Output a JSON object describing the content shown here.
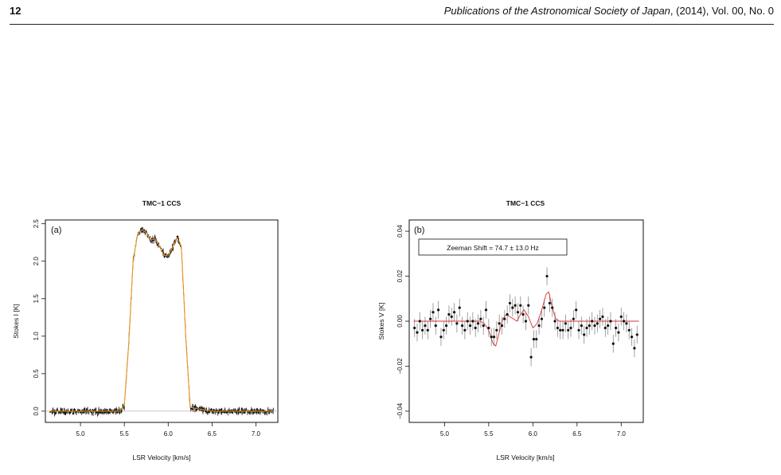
{
  "header": {
    "page_number": "12",
    "journal_italic": "Publications of the Astronomical Society of Japan",
    "journal_rest": ", (2014), Vol. 00, No. 0"
  },
  "colors": {
    "spectrum_black": "#111111",
    "fit_orange": "#e8931e",
    "model_red": "#d33333",
    "error_bar": "#8a8a8a",
    "zero_line": "#b5b5b5"
  },
  "chart_data": [
    {
      "type": "line",
      "panel_label": "(a)",
      "title": "TMC−1 CCS",
      "xlabel": "LSR Velocity [km/s]",
      "ylabel": "Stokes I [K]",
      "xlim": [
        4.6,
        7.25
      ],
      "ylim": [
        -0.15,
        2.55
      ],
      "x_ticks": [
        "5.0",
        "5.5",
        "6.0",
        "6.5",
        "7.0"
      ],
      "x_tick_values": [
        5.0,
        5.5,
        6.0,
        6.5,
        7.0
      ],
      "y_ticks": [
        "0.0",
        "0.5",
        "1.0",
        "1.5",
        "2.0",
        "2.5"
      ],
      "y_tick_values": [
        0.0,
        0.5,
        1.0,
        1.5,
        2.0,
        2.5
      ],
      "zero_line": 0.0,
      "series": [
        {
          "style": "noisy-observed",
          "x": [
            4.65,
            5.0,
            5.45,
            5.5,
            5.55,
            5.6,
            5.65,
            5.7,
            5.75,
            5.8,
            5.85,
            5.9,
            5.95,
            6.0,
            6.05,
            6.1,
            6.15,
            6.2,
            6.25,
            6.5,
            7.0,
            7.2
          ],
          "y": [
            0.0,
            0.0,
            0.0,
            0.08,
            0.9,
            2.0,
            2.35,
            2.42,
            2.38,
            2.28,
            2.3,
            2.2,
            2.08,
            2.07,
            2.18,
            2.32,
            2.2,
            1.0,
            0.05,
            0.0,
            0.0,
            0.0
          ],
          "noise": 0.035
        },
        {
          "style": "fit",
          "x": [
            4.65,
            5.0,
            5.45,
            5.5,
            5.55,
            5.6,
            5.65,
            5.7,
            5.75,
            5.8,
            5.85,
            5.9,
            5.95,
            6.0,
            6.05,
            6.1,
            6.15,
            6.2,
            6.25,
            6.5,
            7.0,
            7.2
          ],
          "y": [
            0.0,
            0.0,
            0.0,
            0.08,
            0.9,
            2.0,
            2.35,
            2.42,
            2.38,
            2.28,
            2.3,
            2.2,
            2.08,
            2.07,
            2.18,
            2.32,
            2.2,
            1.0,
            0.05,
            0.0,
            0.0,
            0.0
          ]
        }
      ]
    },
    {
      "type": "scatter",
      "panel_label": "(b)",
      "title": "TMC−1 CCS",
      "xlabel": "LSR Velocity [km/s]",
      "ylabel": "Stokes V [K]",
      "xlim": [
        4.6,
        7.25
      ],
      "ylim": [
        -0.045,
        0.045
      ],
      "x_ticks": [
        "5.0",
        "5.5",
        "6.0",
        "6.5",
        "7.0"
      ],
      "x_tick_values": [
        5.0,
        5.5,
        6.0,
        6.5,
        7.0
      ],
      "y_ticks": [
        "−0.04",
        "−0.02",
        "0.00",
        "0.02",
        "0.04"
      ],
      "y_tick_values": [
        -0.04,
        -0.02,
        0.0,
        0.02,
        0.04
      ],
      "annotation": "Zeeman Shift =  74.7 ± 13.0 Hz",
      "points": {
        "x": [
          4.66,
          4.69,
          4.72,
          4.75,
          4.78,
          4.81,
          4.84,
          4.87,
          4.9,
          4.93,
          4.96,
          4.99,
          5.02,
          5.05,
          5.08,
          5.11,
          5.14,
          5.17,
          5.2,
          5.23,
          5.26,
          5.29,
          5.32,
          5.35,
          5.38,
          5.41,
          5.44,
          5.47,
          5.5,
          5.53,
          5.56,
          5.59,
          5.62,
          5.65,
          5.68,
          5.71,
          5.74,
          5.77,
          5.8,
          5.83,
          5.86,
          5.89,
          5.92,
          5.95,
          5.98,
          6.01,
          6.04,
          6.07,
          6.1,
          6.13,
          6.16,
          6.19,
          6.22,
          6.25,
          6.28,
          6.31,
          6.34,
          6.37,
          6.4,
          6.43,
          6.46,
          6.49,
          6.52,
          6.55,
          6.58,
          6.61,
          6.64,
          6.67,
          6.7,
          6.73,
          6.76,
          6.79,
          6.82,
          6.85,
          6.88,
          6.91,
          6.94,
          6.97,
          7.0,
          7.03,
          7.06,
          7.09,
          7.12,
          7.15,
          7.18
        ],
        "y": [
          -0.003,
          -0.005,
          0.0,
          -0.004,
          -0.002,
          -0.004,
          0.001,
          0.004,
          -0.002,
          0.005,
          -0.007,
          -0.004,
          -0.002,
          0.003,
          0.002,
          0.004,
          -0.001,
          0.006,
          -0.002,
          -0.004,
          0.0,
          -0.002,
          0.0,
          -0.003,
          -0.001,
          0.001,
          -0.002,
          0.005,
          -0.003,
          -0.007,
          -0.007,
          -0.004,
          -0.001,
          -0.002,
          0.001,
          0.003,
          0.008,
          0.006,
          0.007,
          0.004,
          0.007,
          0.003,
          0.0,
          0.007,
          -0.016,
          -0.008,
          -0.008,
          -0.002,
          0.001,
          0.006,
          0.02,
          0.008,
          0.006,
          0.0,
          -0.003,
          -0.004,
          -0.004,
          -0.001,
          -0.004,
          -0.003,
          0.001,
          0.005,
          -0.004,
          -0.002,
          -0.006,
          -0.003,
          -0.002,
          0.0,
          -0.002,
          -0.001,
          0.001,
          0.002,
          -0.003,
          -0.002,
          0.0,
          -0.01,
          -0.003,
          -0.005,
          0.002,
          0.0,
          -0.001,
          -0.004,
          -0.007,
          -0.012,
          -0.006
        ],
        "err": 0.004
      },
      "model": {
        "x": [
          4.65,
          5.4,
          5.45,
          5.5,
          5.55,
          5.58,
          5.62,
          5.66,
          5.7,
          5.74,
          5.78,
          5.82,
          5.86,
          5.9,
          5.95,
          6.0,
          6.05,
          6.1,
          6.15,
          6.18,
          6.22,
          6.26,
          6.3,
          6.4,
          7.2
        ],
        "y": [
          0.0,
          0.0,
          -0.001,
          -0.004,
          -0.01,
          -0.011,
          -0.005,
          0.001,
          0.003,
          0.002,
          0.001,
          0.0,
          0.003,
          0.005,
          0.002,
          -0.003,
          -0.001,
          0.005,
          0.012,
          0.013,
          0.006,
          0.001,
          0.0,
          0.0,
          0.0
        ]
      }
    }
  ]
}
